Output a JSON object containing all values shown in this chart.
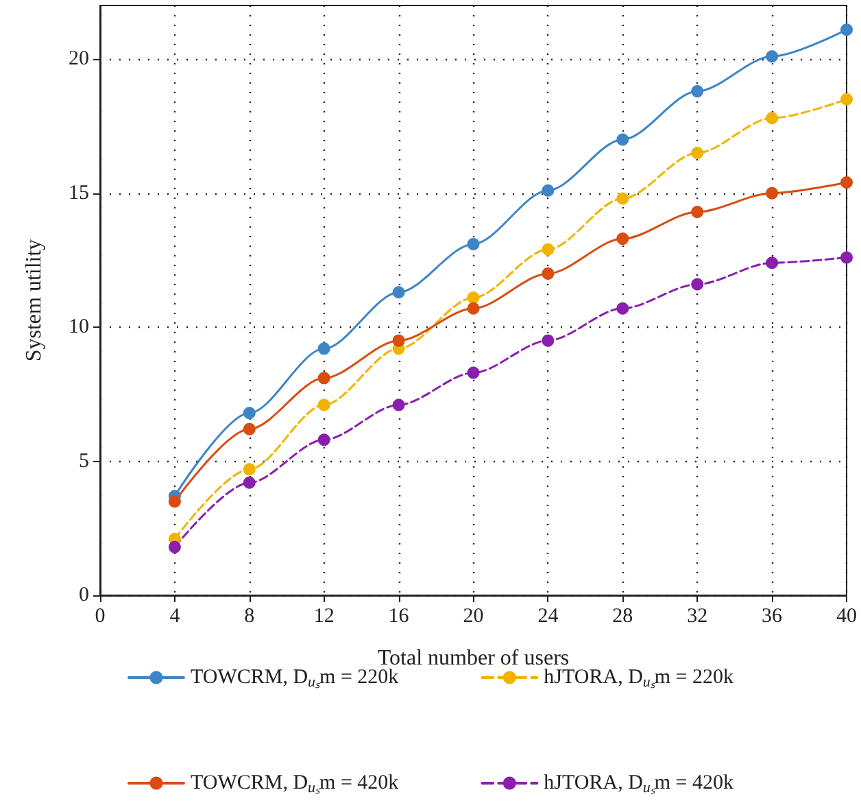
{
  "chart_data": {
    "type": "line",
    "xlabel": "Total number of users",
    "ylabel": "System utility",
    "x": [
      4,
      8,
      12,
      16,
      20,
      24,
      28,
      32,
      36,
      40
    ],
    "xlim": [
      0,
      40
    ],
    "xticks": [
      0,
      4,
      8,
      12,
      16,
      20,
      24,
      28,
      32,
      36,
      40
    ],
    "ylim": [
      0,
      22
    ],
    "yticks": [
      0,
      5,
      10,
      15,
      20
    ],
    "grid": true,
    "legend": "bottom",
    "marker": "circle",
    "series": [
      {
        "name": "TOWCRM, D$_{uₛ}$m = 220k",
        "color": "#3d85c6",
        "line_style": "solid",
        "values": [
          3.7,
          6.8,
          9.2,
          11.3,
          13.1,
          15.1,
          17.0,
          18.8,
          20.1,
          21.1
        ]
      },
      {
        "name": "hJTORA, D$_{uₛ}$m = 220k",
        "color": "#f0b400",
        "line_style": "dashed",
        "values": [
          2.1,
          4.7,
          7.1,
          9.2,
          11.1,
          12.9,
          14.8,
          16.5,
          17.8,
          18.5
        ]
      },
      {
        "name": "TOWCRM, D$_{uₛ}$m = 420k",
        "color": "#d94c12",
        "line_style": "solid",
        "values": [
          3.5,
          6.2,
          8.1,
          9.5,
          10.7,
          12.0,
          13.3,
          14.3,
          15.0,
          15.4
        ]
      },
      {
        "name": "hJTORA, D$_{uₛ}$m = 420k",
        "color": "#8a1fae",
        "line_style": "dashed",
        "values": [
          1.8,
          4.2,
          5.8,
          7.1,
          8.3,
          9.5,
          10.7,
          11.6,
          12.4,
          12.6
        ]
      }
    ]
  }
}
